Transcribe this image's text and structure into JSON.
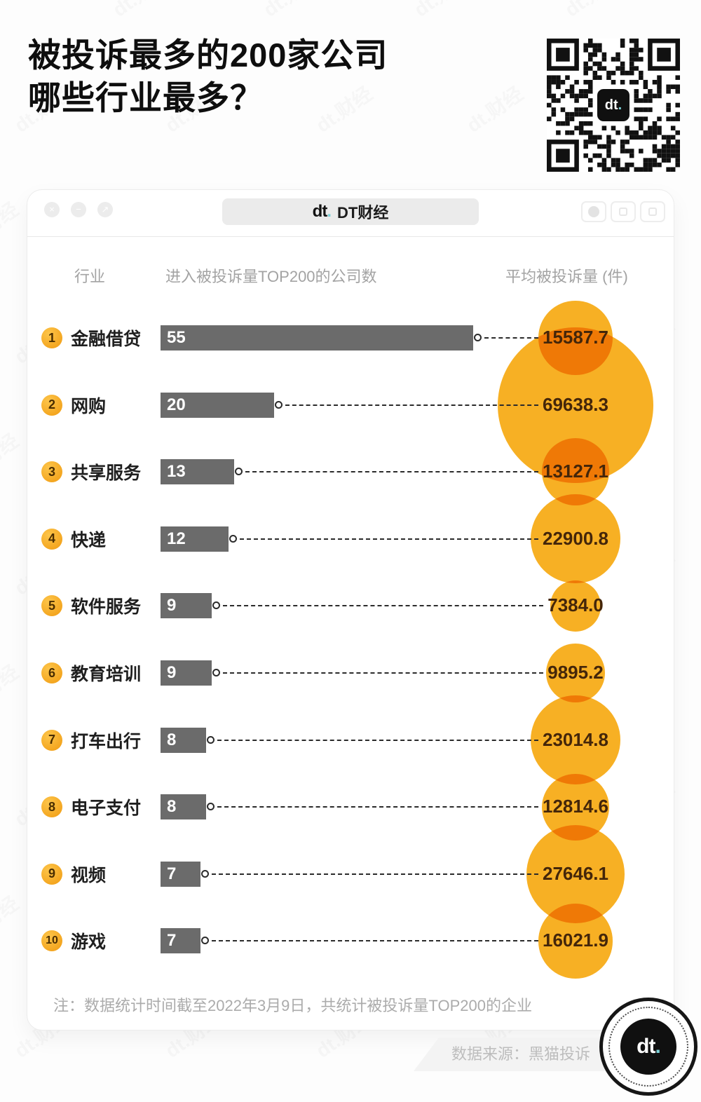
{
  "page": {
    "title_line1": "被投诉最多的200家公司",
    "title_line2": "哪些行业最多？",
    "watermark": "dt.财经"
  },
  "card": {
    "window_controls": {
      "close": "×",
      "minimize": "−",
      "expand": "↗"
    },
    "brand_pill": {
      "logo": "dt",
      "logo_dot": ".",
      "label": "DT财经"
    },
    "columns": {
      "industry": "行业",
      "companies": "进入被投诉量TOP200的公司数",
      "average": "平均被投诉量 (件)"
    },
    "note": "注：数据统计时间截至2022年3月9日，共统计被投诉量TOP200的企业"
  },
  "source": {
    "label": "数据来源：黑猫投诉"
  },
  "logo": {
    "text": "dt",
    "dot": "."
  },
  "chart_data": {
    "type": "bar",
    "title": "被投诉最多的200家公司哪些行业最多？",
    "categories": [
      "金融借贷",
      "网购",
      "共享服务",
      "快递",
      "软件服务",
      "教育培训",
      "打车出行",
      "电子支付",
      "视频",
      "游戏"
    ],
    "ranks": [
      1,
      2,
      3,
      4,
      5,
      6,
      7,
      8,
      9,
      10
    ],
    "series": [
      {
        "name": "进入被投诉量TOP200的公司数",
        "values": [
          55,
          20,
          13,
          12,
          9,
          9,
          8,
          8,
          7,
          7
        ]
      },
      {
        "name": "平均被投诉量 (件)",
        "values": [
          15587.7,
          69638.3,
          13127.1,
          22900.8,
          7384.0,
          9895.2,
          23014.8,
          12814.6,
          27646.1,
          16021.9
        ]
      }
    ],
    "value_labels": [
      "15587.7",
      "69638.3",
      "13127.1",
      "22900.8",
      "7384.0",
      "9895.2",
      "23014.8",
      "12814.6",
      "27646.1",
      "16021.9"
    ],
    "layout": {
      "bar_axis": "horizontal",
      "bubble_area_proportional_to_value": true,
      "legend": "none",
      "grid": false
    },
    "colors": {
      "bar": "#6b6b6b",
      "bubble": "#f7b024",
      "value_text": "#44260a",
      "badge": "#f5a623",
      "count_text": "#ffffff"
    }
  }
}
